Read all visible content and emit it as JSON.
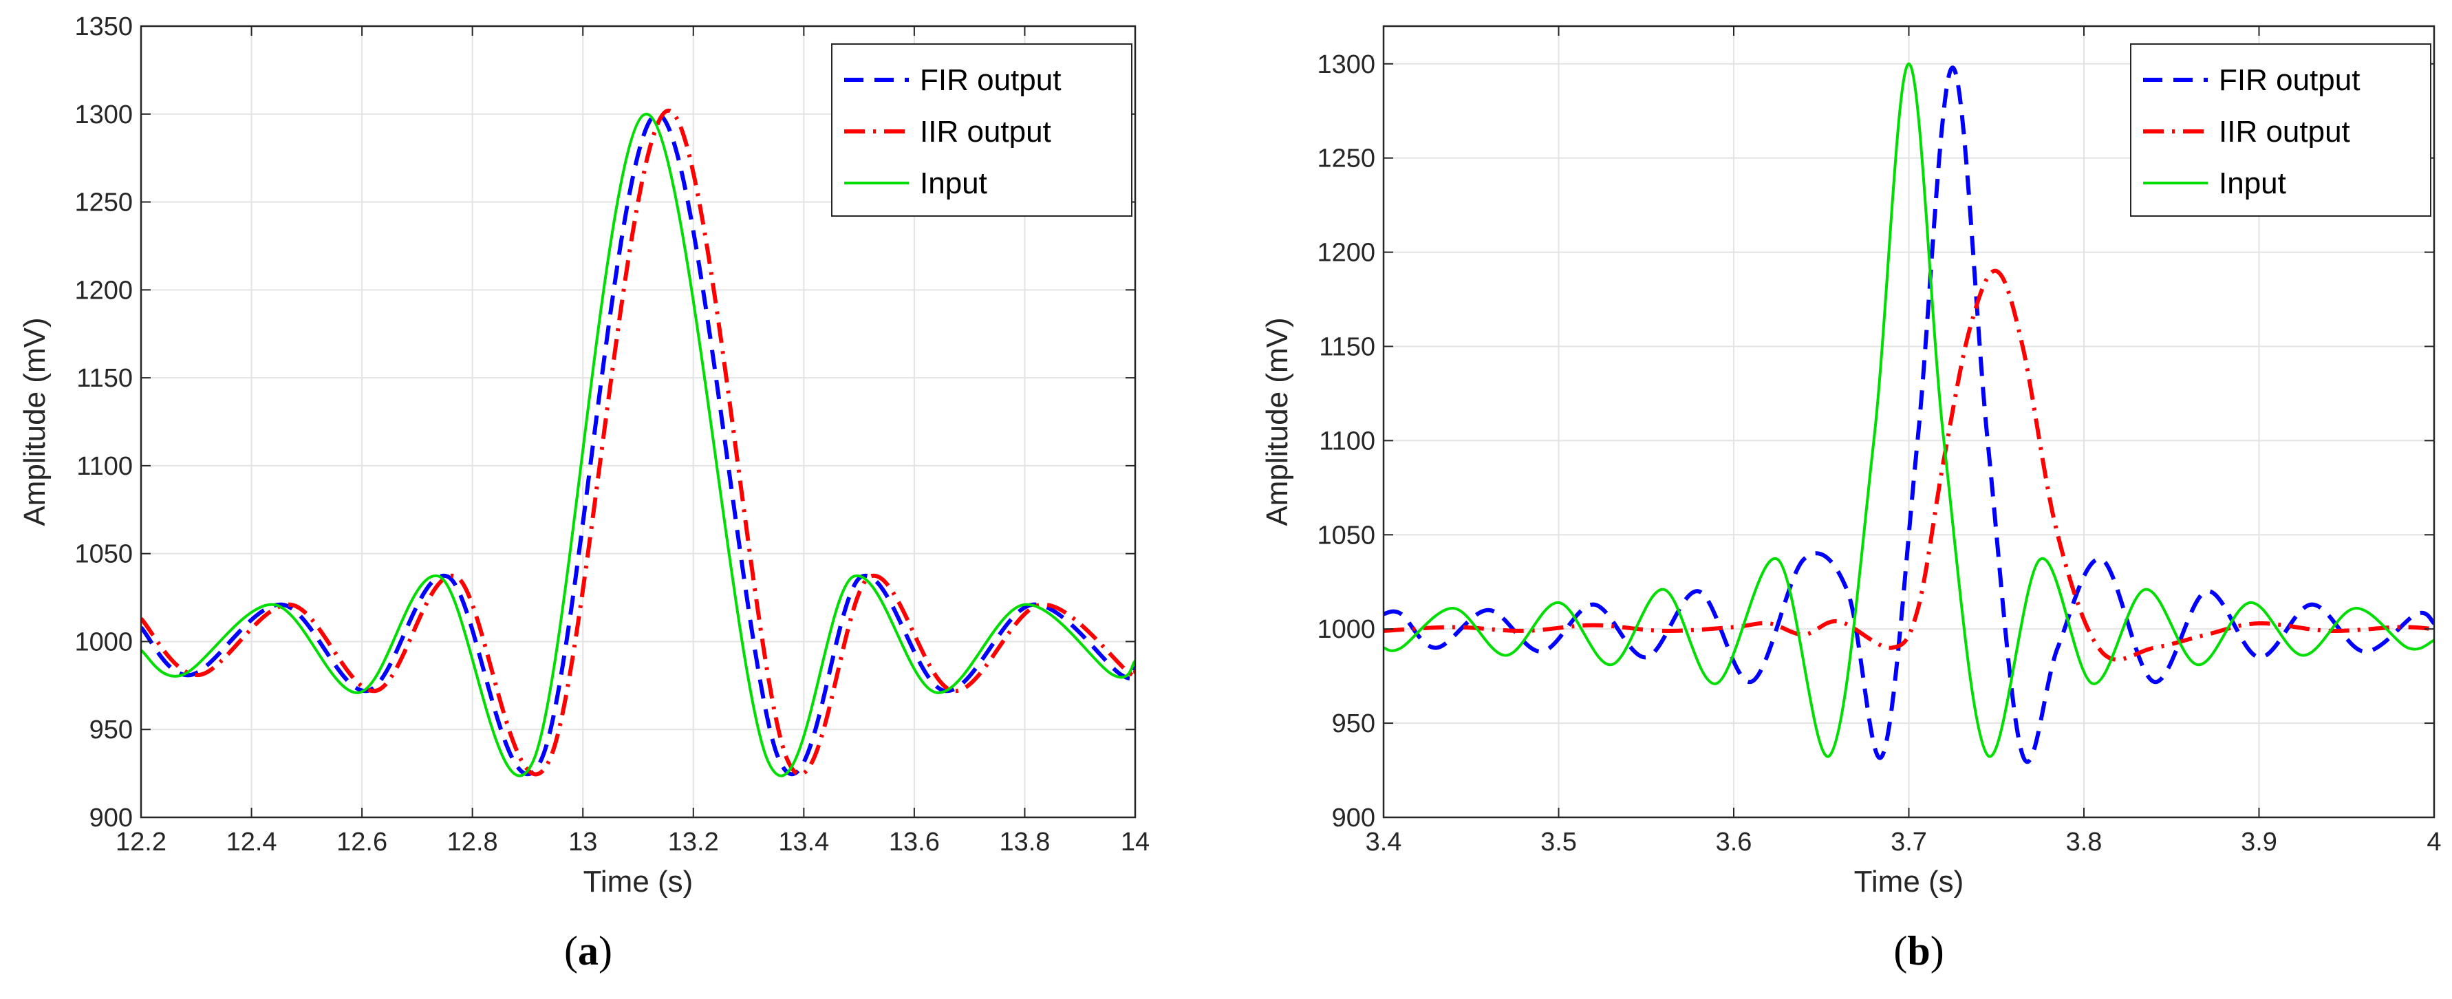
{
  "chart_data": [
    {
      "panel": "a",
      "type": "line",
      "panel_label": "(a)",
      "panel_label_letter": "a",
      "xlabel": "Time (s)",
      "ylabel": "Amplitude (mV)",
      "xlim": [
        12.2,
        14
      ],
      "ylim": [
        900,
        1350
      ],
      "xticks": [
        12.2,
        12.4,
        12.6,
        12.8,
        13,
        13.2,
        13.4,
        13.6,
        13.8,
        14
      ],
      "xtick_labels": [
        "12.2",
        "12.4",
        "12.6",
        "12.8",
        "13",
        "13.2",
        "13.4",
        "13.6",
        "13.8",
        "14"
      ],
      "yticks": [
        900,
        950,
        1000,
        1050,
        1100,
        1150,
        1200,
        1250,
        1300,
        1350
      ],
      "ytick_labels": [
        "900",
        "950",
        "1000",
        "1050",
        "1100",
        "1150",
        "1200",
        "1250",
        "1300",
        "1350"
      ],
      "grid": true,
      "legend_position": "top-right",
      "series": [
        {
          "name": "FIR output",
          "color": "#0000ff",
          "style": "dashed",
          "x": [
            12.2,
            12.29,
            12.455,
            12.61,
            12.755,
            12.925,
            13.135,
            13.355,
            13.505,
            13.655,
            13.815,
            13.975,
            14.0
          ],
          "y": [
            1008,
            981,
            1021,
            972,
            1037,
            933,
            1300,
            933,
            1037,
            972,
            1021,
            981,
            985
          ]
        },
        {
          "name": "IIR output",
          "color": "#ff0000",
          "style": "dashdot",
          "x": [
            12.2,
            12.305,
            12.47,
            12.625,
            12.77,
            12.94,
            13.155,
            13.37,
            13.52,
            13.67,
            13.83,
            13.99,
            14.0
          ],
          "y": [
            1013,
            981,
            1021,
            972,
            1037,
            933,
            1302,
            933,
            1037,
            972,
            1021,
            982,
            983
          ]
        },
        {
          "name": "Input",
          "color": "#00dd00",
          "style": "solid",
          "x": [
            12.2,
            12.275,
            12.44,
            12.595,
            12.74,
            12.91,
            13.115,
            13.335,
            13.49,
            13.64,
            13.8,
            13.96,
            14.0
          ],
          "y": [
            995,
            981,
            1021,
            971,
            1037,
            932,
            1300,
            932,
            1037,
            971,
            1021,
            981,
            989
          ]
        }
      ]
    },
    {
      "panel": "b",
      "type": "line",
      "panel_label": "(b)",
      "panel_label_letter": "b",
      "xlabel": "Time (s)",
      "ylabel": "Amplitude (mV)",
      "xlim": [
        3.4,
        4
      ],
      "ylim": [
        900,
        1320
      ],
      "xticks": [
        3.4,
        3.5,
        3.6,
        3.7,
        3.8,
        3.9,
        4
      ],
      "xtick_labels": [
        "3.4",
        "3.5",
        "3.6",
        "3.7",
        "3.8",
        "3.9",
        "4"
      ],
      "yticks": [
        900,
        950,
        1000,
        1050,
        1100,
        1150,
        1200,
        1250,
        1300
      ],
      "ytick_labels": [
        "900",
        "950",
        "1000",
        "1050",
        "1100",
        "1150",
        "1200",
        "1250",
        "1300"
      ],
      "grid": true,
      "legend_position": "top-right",
      "series": [
        {
          "name": "FIR output",
          "color": "#0000ff",
          "style": "dashed",
          "x": [
            3.4,
            3.41,
            3.43,
            3.46,
            3.49,
            3.52,
            3.55,
            3.58,
            3.61,
            3.64,
            3.665,
            3.685,
            3.705,
            3.725,
            3.745,
            3.765,
            3.785,
            3.81,
            3.84,
            3.87,
            3.9,
            3.93,
            3.96,
            3.99,
            4.0
          ],
          "y": [
            1008,
            1008,
            990,
            1010,
            988,
            1013,
            985,
            1020,
            972,
            1037,
            1020,
            933,
            1100,
            1298,
            1100,
            933,
            990,
            1037,
            972,
            1020,
            985,
            1013,
            988,
            1008,
            1003
          ]
        },
        {
          "name": "IIR output",
          "color": "#ff0000",
          "style": "dashdot",
          "x": [
            3.4,
            3.44,
            3.48,
            3.52,
            3.56,
            3.6,
            3.62,
            3.64,
            3.66,
            3.69,
            3.705,
            3.72,
            3.735,
            3.75,
            3.765,
            3.785,
            3.81,
            3.84,
            3.87,
            3.9,
            3.94,
            3.98,
            4.0
          ],
          "y": [
            999,
            1001,
            999,
            1002,
            999,
            1001,
            1003,
            997,
            1004,
            990,
            1010,
            1090,
            1160,
            1190,
            1150,
            1050,
            988,
            990,
            997,
            1003,
            999,
            1001,
            1000
          ]
        },
        {
          "name": "Input",
          "color": "#00dd00",
          "style": "solid",
          "x": [
            3.4,
            3.41,
            3.44,
            3.47,
            3.5,
            3.53,
            3.56,
            3.59,
            3.625,
            3.655,
            3.68,
            3.7,
            3.72,
            3.745,
            3.775,
            3.805,
            3.835,
            3.865,
            3.895,
            3.925,
            3.955,
            3.985,
            4.0
          ],
          "y": [
            990,
            990,
            1011,
            986,
            1014,
            981,
            1021,
            971,
            1037,
            933,
            1100,
            1300,
            1100,
            933,
            1037,
            971,
            1021,
            981,
            1014,
            986,
            1011,
            990,
            994
          ]
        }
      ]
    }
  ]
}
